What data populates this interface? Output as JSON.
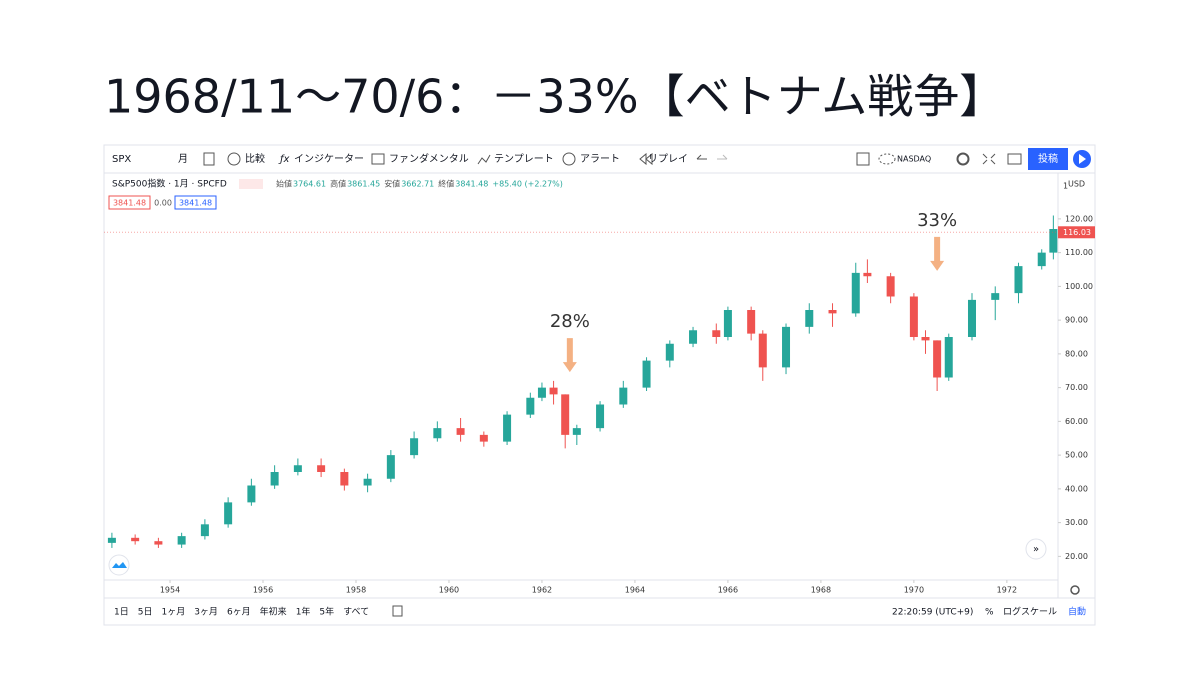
{
  "title": "1968/11～70/6：－33%【ベトナム戦争】",
  "toolbar": {
    "symbol": "SPX",
    "interval": "月",
    "compare": "比較",
    "indicators": "インジケーター",
    "fundamentals": "ファンダメンタル",
    "templates": "テンプレート",
    "alert": "アラート",
    "replay": "リプレイ",
    "exchange": "NASDAQ",
    "publish": "投稿"
  },
  "legend": {
    "name": "S&P500指数 · 1月 · SPCFD",
    "ohlc": [
      [
        "始値",
        "3764.61"
      ],
      [
        "高値",
        "3861.45"
      ],
      [
        "安値",
        "3662.71"
      ],
      [
        "終値",
        "3841.48"
      ]
    ],
    "change": "+85.40 (+2.27%)",
    "sell": "3841.48",
    "spread": "0.00",
    "buy": "3841.48"
  },
  "bottom_bar": {
    "ranges": [
      "1日",
      "5日",
      "1ヶ月",
      "3ヶ月",
      "6ヶ月",
      "年初来",
      "1年",
      "5年",
      "すべて"
    ],
    "time": "22:20:59 (UTC+9)",
    "percent": "%",
    "log": "ログスケール",
    "auto": "自動"
  },
  "chart_data": {
    "type": "candlestick",
    "currency": "USD",
    "scale_label": "1",
    "x": [
      1952.75,
      1953.25,
      1953.75,
      1954.25,
      1954.75,
      1955.25,
      1955.75,
      1956.25,
      1956.75,
      1957.25,
      1957.75,
      1958.25,
      1958.75,
      1959.25,
      1959.75,
      1960.25,
      1960.75,
      1961.25,
      1961.75,
      1962.0,
      1962.25,
      1962.5,
      1962.75,
      1963.25,
      1963.75,
      1964.25,
      1964.75,
      1965.25,
      1965.75,
      1966.0,
      1966.5,
      1966.75,
      1967.25,
      1967.75,
      1968.25,
      1968.75,
      1969.0,
      1969.5,
      1970.0,
      1970.25,
      1970.5,
      1970.75,
      1971.25,
      1971.75,
      1972.25,
      1972.75,
      1973.0
    ],
    "open": [
      24,
      25.5,
      24.5,
      23.5,
      26,
      29.5,
      36,
      41,
      45,
      47,
      45,
      41,
      43,
      50,
      55,
      58,
      56,
      54,
      62,
      67,
      70,
      68,
      56,
      58,
      65,
      70,
      78,
      83,
      87,
      85,
      93,
      86,
      76,
      88,
      93,
      92,
      104,
      103,
      97,
      85,
      84,
      73,
      85,
      96,
      98,
      106,
      110
    ],
    "high": [
      27,
      26.5,
      25.5,
      27,
      31,
      37.5,
      43,
      47,
      49,
      49,
      46,
      44.5,
      51.5,
      57,
      60,
      61,
      57,
      63,
      68.5,
      71.5,
      72,
      68,
      59,
      66,
      72,
      79,
      84,
      88,
      89,
      94,
      94,
      87,
      89,
      95,
      95,
      107,
      108,
      104,
      98,
      87,
      84,
      86,
      98,
      100,
      107,
      111,
      121
    ],
    "low": [
      22.5,
      23.5,
      22.5,
      22.5,
      25,
      28.5,
      35,
      40,
      44,
      43.5,
      39.5,
      39,
      42,
      49,
      54,
      54,
      52.5,
      53,
      61,
      66,
      65,
      52,
      53,
      57,
      64,
      69,
      76,
      82,
      83,
      84,
      84,
      72,
      74,
      86,
      88,
      91,
      101,
      95,
      84,
      80,
      69,
      72,
      84,
      90,
      95,
      105,
      108
    ],
    "close": [
      25.5,
      24.5,
      23.5,
      26,
      29.5,
      36,
      41,
      45,
      47,
      45,
      41,
      43,
      50,
      55,
      58,
      56,
      54,
      62,
      67,
      70,
      68,
      56,
      58,
      65,
      70,
      78,
      83,
      87,
      85,
      93,
      86,
      76,
      88,
      93,
      92,
      104,
      103,
      97,
      85,
      84,
      73,
      85,
      96,
      98,
      106,
      110,
      117
    ],
    "up_color": "#26a69a",
    "down_color": "#ef5350",
    "last_price": 116.03,
    "xlim": [
      1952.58,
      1973.1
    ],
    "xticks": [
      1954,
      1956,
      1958,
      1960,
      1962,
      1964,
      1966,
      1968,
      1970,
      1972
    ],
    "ylim": [
      13,
      133
    ],
    "yticks": [
      {
        "value": 20,
        "label": "20.00"
      },
      {
        "value": 30,
        "label": "30.00"
      },
      {
        "value": 40,
        "label": "40.00"
      },
      {
        "value": 50,
        "label": "50.00"
      },
      {
        "value": 60,
        "label": "60.00"
      },
      {
        "value": 70,
        "label": "70.00"
      },
      {
        "value": 80,
        "label": "80.00"
      },
      {
        "value": 90,
        "label": "90.00"
      },
      {
        "value": 100,
        "label": "100.00"
      },
      {
        "value": 110,
        "label": "110.00"
      },
      {
        "value": 120,
        "label": "120.00"
      }
    ],
    "grid": false,
    "annotations": [
      {
        "text": "28%",
        "x": 1962.6,
        "y": 74
      },
      {
        "text": "33%",
        "x": 1970.5,
        "y": 104
      }
    ]
  }
}
